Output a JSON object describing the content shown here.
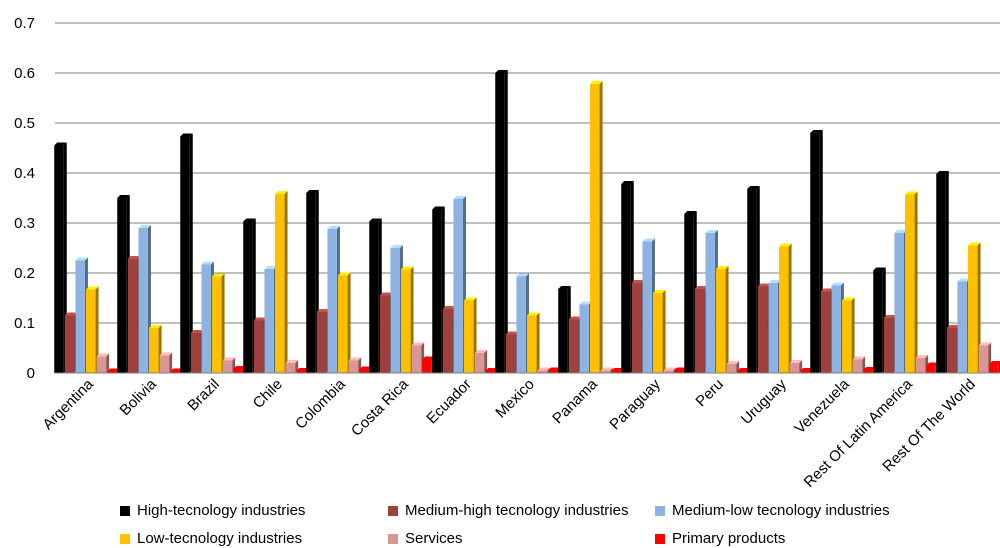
{
  "chart_data": {
    "type": "bar",
    "title": "",
    "xlabel": "",
    "ylabel": "",
    "ylim": [
      0,
      0.7
    ],
    "yticks": [
      "0",
      "0.1",
      "0.2",
      "0.3",
      "0.4",
      "0.5",
      "0.6",
      "0.7"
    ],
    "grid": "horizontal",
    "legend_position": "bottom",
    "categories": [
      "Argentina",
      "Bolivia",
      "Brazil",
      "Chile",
      "Colombia",
      "Costa Rica",
      "Ecuador",
      "Mexico",
      "Panama",
      "Paraguay",
      "Peru",
      "Uruguay",
      "Venezuela",
      "Rest Of Latin America",
      "Rest Of The World"
    ],
    "series": [
      {
        "name": "High-tecnology industries",
        "color": "#000000",
        "values": [
          0.455,
          0.35,
          0.473,
          0.303,
          0.36,
          0.303,
          0.327,
          0.6,
          0.168,
          0.378,
          0.318,
          0.368,
          0.48,
          0.205,
          0.398
        ]
      },
      {
        "name": "Medium-high tecnology industries",
        "color": "#a0403c",
        "values": [
          0.115,
          0.228,
          0.08,
          0.105,
          0.122,
          0.155,
          0.128,
          0.077,
          0.107,
          0.18,
          0.168,
          0.173,
          0.163,
          0.11,
          0.09
        ]
      },
      {
        "name": "Medium-low tecnology industries",
        "color": "#8db3e2",
        "values": [
          0.225,
          0.29,
          0.217,
          0.208,
          0.288,
          0.25,
          0.348,
          0.193,
          0.137,
          0.263,
          0.28,
          0.18,
          0.175,
          0.28,
          0.183
        ]
      },
      {
        "name": "Low-tecnology industries",
        "color": "#ffc000",
        "values": [
          0.167,
          0.09,
          0.193,
          0.358,
          0.195,
          0.207,
          0.145,
          0.115,
          0.578,
          0.16,
          0.208,
          0.253,
          0.145,
          0.357,
          0.255
        ]
      },
      {
        "name": "Services",
        "color": "#d99694",
        "values": [
          0.033,
          0.035,
          0.025,
          0.02,
          0.025,
          0.055,
          0.04,
          0.005,
          0.005,
          0.005,
          0.018,
          0.02,
          0.027,
          0.03,
          0.055
        ]
      },
      {
        "name": "Primary products",
        "color": "#ff0000",
        "values": [
          0.003,
          0.003,
          0.008,
          0.004,
          0.007,
          0.027,
          0.004,
          0.005,
          0.004,
          0.005,
          0.004,
          0.004,
          0.006,
          0.015,
          0.018
        ]
      }
    ]
  }
}
